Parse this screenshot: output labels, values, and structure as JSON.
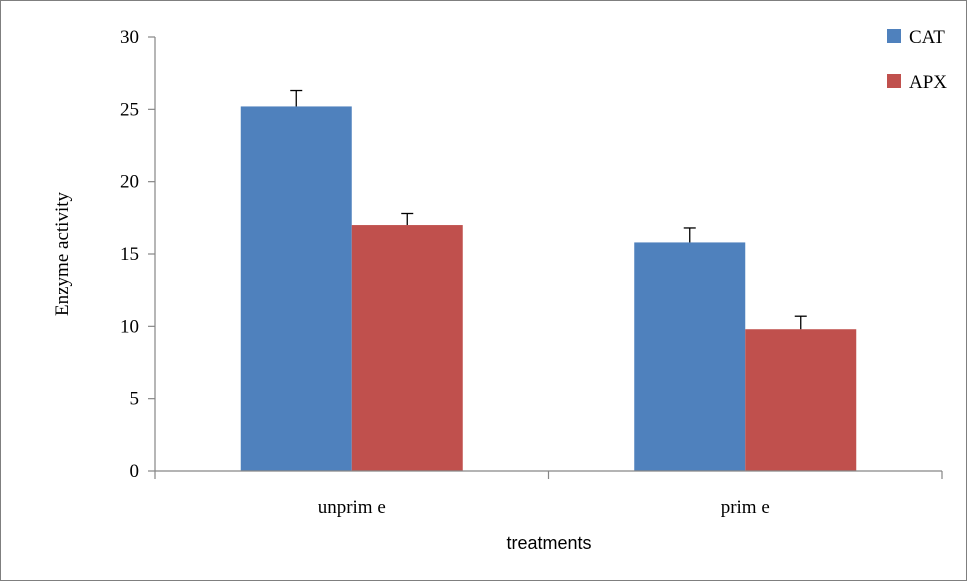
{
  "chart_data": {
    "type": "bar",
    "title": "",
    "xlabel": "treatments",
    "ylabel": "Enzyme  activity",
    "categories": [
      "unprim e",
      "prim e"
    ],
    "ylim": [
      0,
      30
    ],
    "yticks": [
      0,
      5,
      10,
      15,
      20,
      25,
      30
    ],
    "grid": false,
    "legend_position": "top-right",
    "series": [
      {
        "name": "CAT",
        "color": "#4f81bd",
        "values": [
          25.2,
          15.8
        ],
        "errors": [
          1.1,
          1.0
        ]
      },
      {
        "name": "APX",
        "color": "#c0504d",
        "values": [
          17.0,
          9.8
        ],
        "errors": [
          0.8,
          0.9
        ]
      }
    ]
  }
}
